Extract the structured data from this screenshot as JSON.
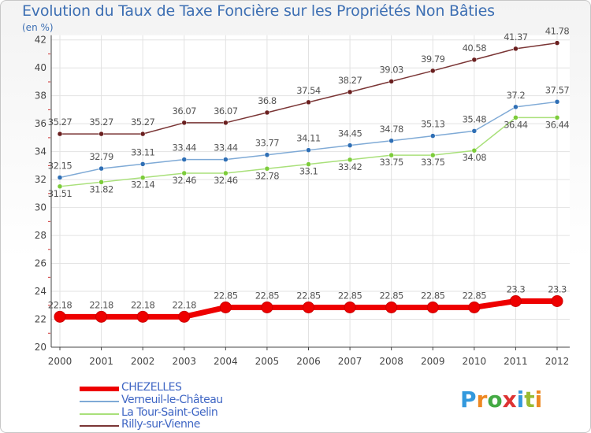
{
  "title": "Evolution du Taux de Taxe Foncière sur les Propriétés Non Bâties",
  "unit_label": "(en %)",
  "logo": {
    "letters": [
      "P",
      "r",
      "o",
      "x",
      "i",
      "t",
      "i"
    ],
    "colors": [
      "#3399dd",
      "#ee8822",
      "#44aa44",
      "#dd3333",
      "#3399dd",
      "#99bb33",
      "#ee8822"
    ]
  },
  "chart_data": {
    "type": "line",
    "title": "Evolution du Taux de Taxe Foncière sur les Propriétés Non Bâties",
    "ylabel": "(en %)",
    "xlabel": "",
    "x": [
      "2000",
      "2001",
      "2002",
      "2003",
      "2004",
      "2005",
      "2006",
      "2007",
      "2008",
      "2009",
      "2010",
      "2011",
      "2012"
    ],
    "ylim": [
      20,
      42
    ],
    "yticks": [
      "20",
      "22",
      "24",
      "26",
      "28",
      "30",
      "32",
      "34",
      "36",
      "38",
      "40",
      "42"
    ],
    "grid": true,
    "legend_position": "bottom-left",
    "series": [
      {
        "name": "CHEZELLES",
        "color": "#ee0000",
        "values": [
          22.18,
          22.18,
          22.18,
          22.18,
          22.85,
          22.85,
          22.85,
          22.85,
          22.85,
          22.85,
          22.85,
          23.3,
          23.3
        ],
        "labels": [
          "22.18",
          "22.18",
          "22.18",
          "22.18",
          "22.85",
          "22.85",
          "22.85",
          "22.85",
          "22.85",
          "22.85",
          "22.85",
          "23.3",
          "23.3"
        ]
      },
      {
        "name": "Verneuil-le-Château",
        "color": "#7faad6",
        "values": [
          32.15,
          32.79,
          33.11,
          33.44,
          33.44,
          33.77,
          34.11,
          34.45,
          34.78,
          35.13,
          35.48,
          37.2,
          37.57
        ],
        "labels": [
          "32.15",
          "32.79",
          "33.11",
          "33.44",
          "33.44",
          "33.77",
          "34.11",
          "34.45",
          "34.78",
          "35.13",
          "35.48",
          "37.2",
          "37.57"
        ]
      },
      {
        "name": "La Tour-Saint-Gelin",
        "color": "#a9e07a",
        "values": [
          31.51,
          31.82,
          32.14,
          32.46,
          32.46,
          32.78,
          33.1,
          33.42,
          33.75,
          33.75,
          34.08,
          36.44,
          36.44
        ],
        "labels": [
          "31.51",
          "31.82",
          "32.14",
          "32.46",
          "32.46",
          "32.78",
          "33.1",
          "33.42",
          "33.75",
          "33.75",
          "34.08",
          "36.44",
          "36.44"
        ]
      },
      {
        "name": "Rilly-sur-Vienne",
        "color": "#7a3535",
        "values": [
          35.27,
          35.27,
          35.27,
          36.07,
          36.07,
          36.8,
          37.54,
          38.27,
          39.03,
          39.79,
          40.58,
          41.37,
          41.78
        ],
        "labels": [
          "35.27",
          "35.27",
          "35.27",
          "36.07",
          "36.07",
          "36.8",
          "37.54",
          "38.27",
          "39.03",
          "39.79",
          "40.58",
          "41.37",
          "41.78"
        ]
      }
    ]
  }
}
